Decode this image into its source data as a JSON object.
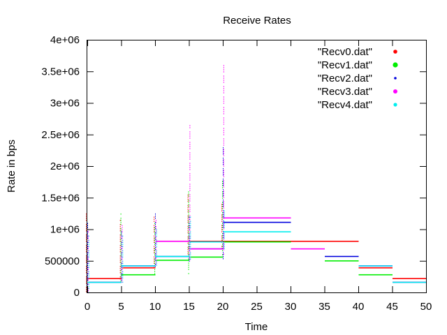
{
  "chart_data": {
    "type": "scatter",
    "title": "Receive Rates",
    "xlabel": "Time",
    "ylabel": "Rate in bps",
    "xlim": [
      0,
      50
    ],
    "ylim": [
      0,
      4000000
    ],
    "xticks": [
      0,
      5,
      10,
      15,
      20,
      25,
      30,
      35,
      40,
      45,
      50
    ],
    "xtick_labels": [
      "0",
      "5",
      "10",
      "15",
      "20",
      "25",
      "30",
      "35",
      "40",
      "45",
      "50"
    ],
    "yticks": [
      0,
      500000,
      1000000,
      1500000,
      2000000,
      2500000,
      3000000,
      3500000,
      4000000
    ],
    "ytick_labels": [
      "0",
      "500000",
      "1e+06",
      "1.5e+06",
      "2e+06",
      "2.5e+06",
      "3e+06",
      "3.5e+06",
      "4e+06"
    ],
    "grid": false,
    "legend_position": "top-right",
    "series": [
      {
        "name": "\"Recv0.dat\"",
        "color": "#ff0000",
        "segments": [
          {
            "x": [
              0,
              5
            ],
            "y": 220000
          },
          {
            "x": [
              5,
              10
            ],
            "y": 390000
          },
          {
            "x": [
              10,
              15
            ],
            "y": 810000
          },
          {
            "x": [
              15,
              20
            ],
            "y": 810000
          },
          {
            "x": [
              20,
              30
            ],
            "y": 810000
          },
          {
            "x": [
              30,
              35
            ],
            "y": 810000
          },
          {
            "x": [
              35,
              40
            ],
            "y": 810000
          },
          {
            "x": [
              40,
              45
            ],
            "y": 390000
          },
          {
            "x": [
              45,
              50
            ],
            "y": 220000
          }
        ],
        "spikes": [
          {
            "x": 0,
            "y0": 0,
            "y1": 1250000
          },
          {
            "x": 5,
            "y0": 220000,
            "y1": 1150000
          },
          {
            "x": 10,
            "y0": 390000,
            "y1": 1200000
          },
          {
            "x": 15,
            "y0": 600000,
            "y1": 1550000
          },
          {
            "x": 20,
            "y0": 700000,
            "y1": 1400000
          }
        ]
      },
      {
        "name": "\"Recv1.dat\"",
        "color": "#00ee00",
        "segments": [
          {
            "x": [
              0,
              5
            ],
            "y": 160000
          },
          {
            "x": [
              5,
              10
            ],
            "y": 280000
          },
          {
            "x": [
              10,
              15
            ],
            "y": 510000
          },
          {
            "x": [
              15,
              20
            ],
            "y": 560000
          },
          {
            "x": [
              20,
              30
            ],
            "y": 800000
          },
          {
            "x": [
              35,
              40
            ],
            "y": 500000
          },
          {
            "x": [
              40,
              45
            ],
            "y": 280000
          },
          {
            "x": [
              45,
              50
            ],
            "y": 160000
          }
        ],
        "spikes": [
          {
            "x": 0,
            "y0": 0,
            "y1": 1200000
          },
          {
            "x": 5,
            "y0": 160000,
            "y1": 1250000
          },
          {
            "x": 10,
            "y0": 280000,
            "y1": 1100000
          },
          {
            "x": 15,
            "y0": 300000,
            "y1": 1600000
          },
          {
            "x": 20,
            "y0": 600000,
            "y1": 1800000
          }
        ]
      },
      {
        "name": "\"Recv2.dat\"",
        "color": "#0000dd",
        "segments": [
          {
            "x": [
              0,
              5
            ],
            "y": 160000
          },
          {
            "x": [
              5,
              10
            ],
            "y": 420000
          },
          {
            "x": [
              10,
              15
            ],
            "y": 570000
          },
          {
            "x": [
              15,
              20
            ],
            "y": 690000
          },
          {
            "x": [
              20,
              30
            ],
            "y": 1110000
          },
          {
            "x": [
              35,
              40
            ],
            "y": 570000
          },
          {
            "x": [
              40,
              45
            ],
            "y": 420000
          },
          {
            "x": [
              45,
              50
            ],
            "y": 160000
          }
        ],
        "spikes": [
          {
            "x": 0,
            "y0": 0,
            "y1": 1100000
          },
          {
            "x": 5,
            "y0": 160000,
            "y1": 1000000
          },
          {
            "x": 10,
            "y0": 420000,
            "y1": 1250000
          },
          {
            "x": 15,
            "y0": 450000,
            "y1": 1200000
          },
          {
            "x": 20,
            "y0": 500000,
            "y1": 2300000
          }
        ]
      },
      {
        "name": "\"Recv3.dat\"",
        "color": "#ff00ff",
        "segments": [
          {
            "x": [
              0,
              5
            ],
            "y": 160000
          },
          {
            "x": [
              5,
              10
            ],
            "y": 420000
          },
          {
            "x": [
              10,
              15
            ],
            "y": 810000
          },
          {
            "x": [
              15,
              20
            ],
            "y": 690000
          },
          {
            "x": [
              20,
              30
            ],
            "y": 1180000
          },
          {
            "x": [
              30,
              35
            ],
            "y": 690000
          },
          {
            "x": [
              40,
              45
            ],
            "y": 420000
          },
          {
            "x": [
              45,
              50
            ],
            "y": 160000
          }
        ],
        "spikes": [
          {
            "x": 0,
            "y0": 0,
            "y1": 1000000
          },
          {
            "x": 5,
            "y0": 160000,
            "y1": 1100000
          },
          {
            "x": 10,
            "y0": 420000,
            "y1": 1150000
          },
          {
            "x": 15,
            "y0": 500000,
            "y1": 2650000
          },
          {
            "x": 20,
            "y0": 600000,
            "y1": 3600000
          }
        ]
      },
      {
        "name": "\"Recv4.dat\"",
        "color": "#00eeee",
        "segments": [
          {
            "x": [
              0,
              5
            ],
            "y": 160000
          },
          {
            "x": [
              5,
              10
            ],
            "y": 420000
          },
          {
            "x": [
              10,
              15
            ],
            "y": 570000
          },
          {
            "x": [
              15,
              20
            ],
            "y": 800000
          },
          {
            "x": [
              20,
              30
            ],
            "y": 960000
          },
          {
            "x": [
              40,
              45
            ],
            "y": 420000
          },
          {
            "x": [
              45,
              50
            ],
            "y": 160000
          }
        ],
        "spikes": [
          {
            "x": 0,
            "y0": 0,
            "y1": 900000
          },
          {
            "x": 5,
            "y0": 160000,
            "y1": 900000
          },
          {
            "x": 10,
            "y0": 420000,
            "y1": 1000000
          },
          {
            "x": 15,
            "y0": 500000,
            "y1": 1200000
          },
          {
            "x": 20,
            "y0": 650000,
            "y1": 1300000
          }
        ]
      }
    ]
  }
}
